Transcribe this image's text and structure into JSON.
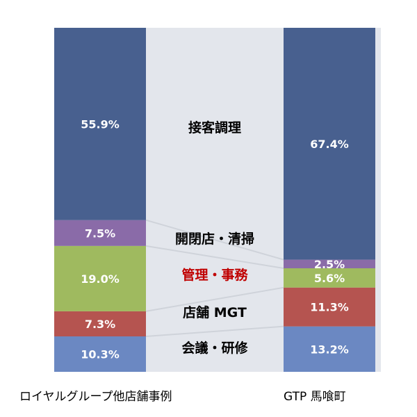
{
  "chart_data": {
    "type": "bar",
    "stacked": true,
    "percent_stacked": true,
    "categories": [
      "ロイヤルグループ他店舗事例",
      "GTP 馬喰町"
    ],
    "series": [
      {
        "name": "会議・研修",
        "values": [
          10.3,
          13.2
        ],
        "labels": [
          "10.3%",
          "13.2%"
        ],
        "color": "#6b88c2",
        "label_color": "#000000"
      },
      {
        "name": "店舗 MGT",
        "values": [
          7.3,
          11.3
        ],
        "labels": [
          "7.3%",
          "11.3%"
        ],
        "color": "#b55450",
        "label_color": "#000000"
      },
      {
        "name": "管理・事務",
        "values": [
          19.0,
          5.6
        ],
        "labels": [
          "19.0%",
          "5.6%"
        ],
        "color": "#9fba5f",
        "label_color": "#c00000"
      },
      {
        "name": "開閉店・清掃",
        "values": [
          7.5,
          2.5
        ],
        "labels": [
          "7.5%",
          "2.5%"
        ],
        "color": "#8a6ba8",
        "label_color": "#000000"
      },
      {
        "name": "接客調理",
        "values": [
          55.9,
          67.4
        ],
        "labels": [
          "55.9%",
          "67.4%"
        ],
        "color": "#48608f",
        "label_color": "#000000"
      }
    ],
    "ylim": [
      0,
      100
    ],
    "legend": "between-bars",
    "grid": false,
    "background_color": "#e3e6ec"
  }
}
